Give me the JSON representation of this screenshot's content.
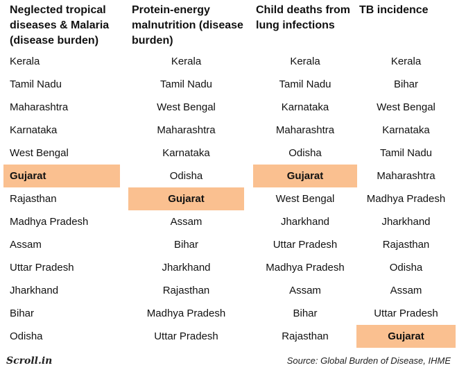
{
  "headers": [
    "Neglected tropical diseases & Malaria (disease burden)",
    "Protein-energy malnutrition (disease burden)",
    "Child deaths from lung infections",
    "TB incidence"
  ],
  "rows": [
    [
      "Kerala",
      "Kerala",
      "Kerala",
      "Kerala"
    ],
    [
      "Tamil Nadu",
      "Tamil Nadu",
      "Tamil Nadu",
      "Bihar"
    ],
    [
      "Maharashtra",
      "West Bengal",
      "Karnataka",
      "West Bengal"
    ],
    [
      "Karnataka",
      "Maharashtra",
      "Maharashtra",
      "Karnataka"
    ],
    [
      "West Bengal",
      "Karnataka",
      "Odisha",
      "Tamil Nadu"
    ],
    [
      "Gujarat",
      "Odisha",
      "Gujarat",
      "Maharashtra"
    ],
    [
      "Rajasthan",
      "Gujarat",
      "West Bengal",
      "Madhya Pradesh"
    ],
    [
      "Madhya Pradesh",
      "Assam",
      "Jharkhand",
      "Jharkhand"
    ],
    [
      "Assam",
      "Bihar",
      "Uttar Pradesh",
      "Rajasthan"
    ],
    [
      "Uttar Pradesh",
      "Jharkhand",
      "Madhya Pradesh",
      "Odisha"
    ],
    [
      "Jharkhand",
      "Rajasthan",
      "Assam",
      "Assam"
    ],
    [
      "Bihar",
      "Madhya Pradesh",
      "Bihar",
      "Uttar Pradesh"
    ],
    [
      "Odisha",
      "Uttar Pradesh",
      "Rajasthan",
      "Gujarat"
    ]
  ],
  "highlight": {
    "value": "Gujarat",
    "color": "#fac090"
  },
  "footer": {
    "logo": "Scroll.in",
    "source": "Source: Global Burden of Disease, IHME"
  }
}
